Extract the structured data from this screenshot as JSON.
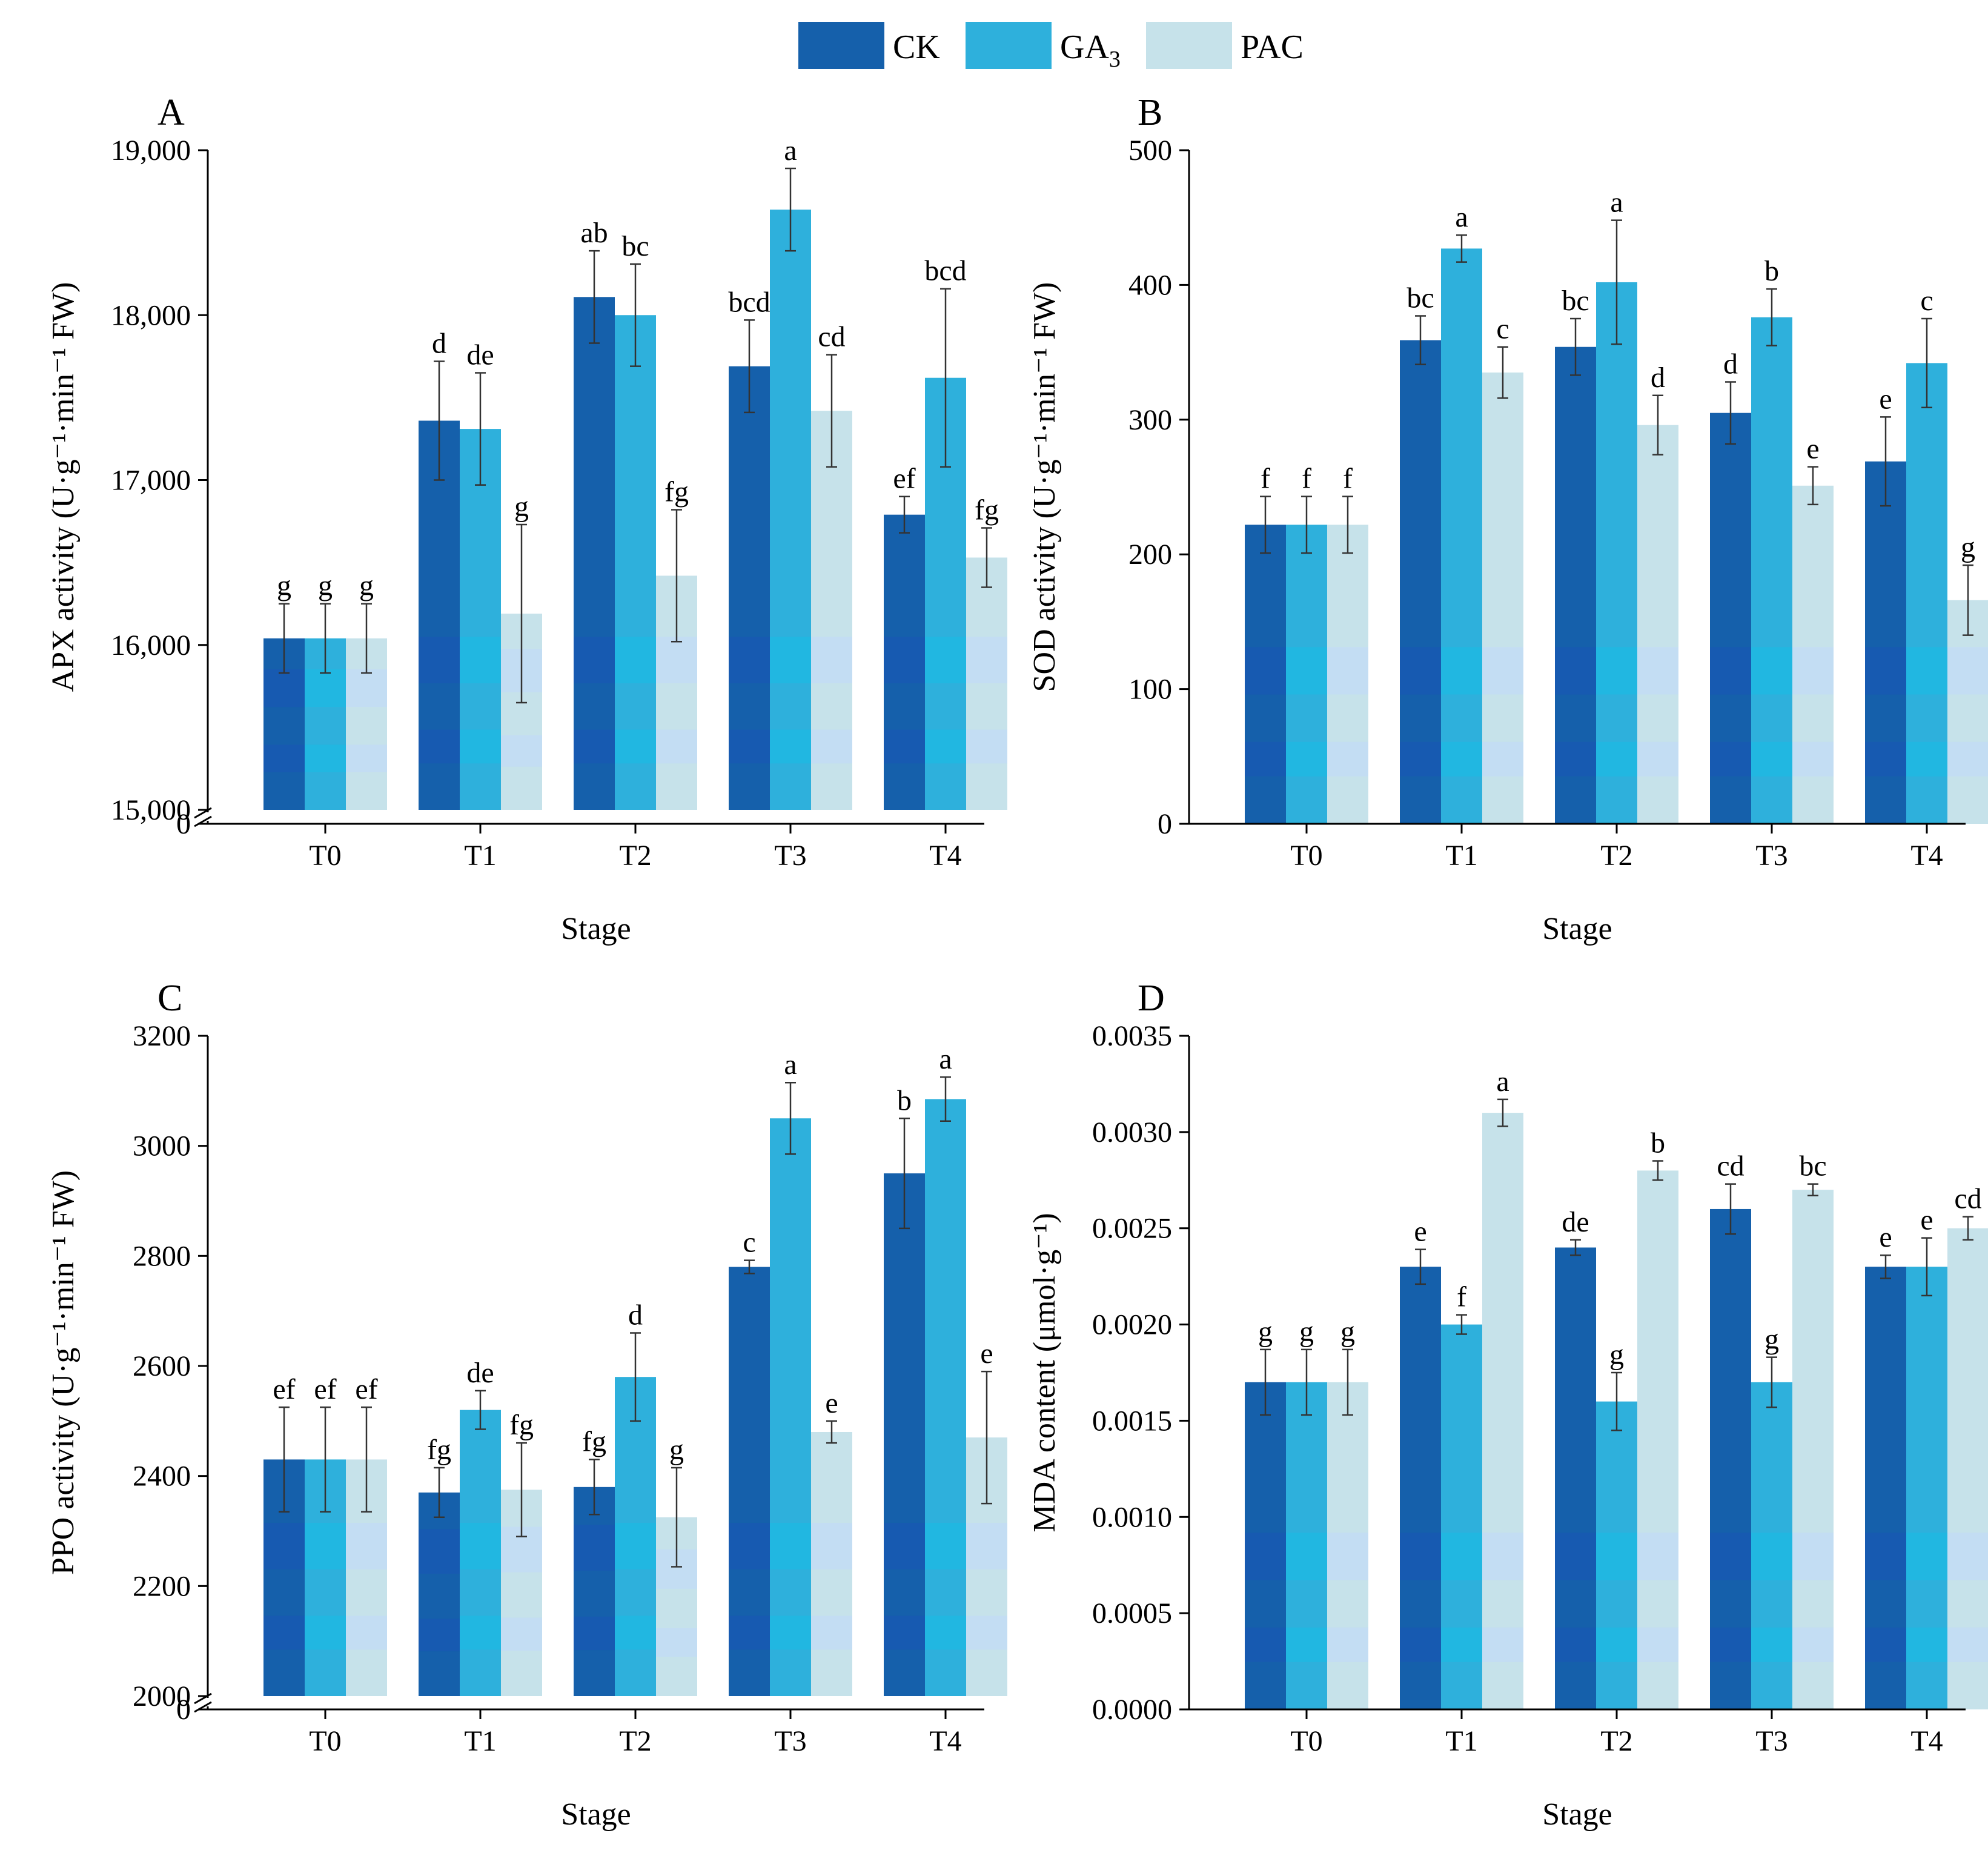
{
  "legend": [
    {
      "label": "CK",
      "sub": "",
      "color": "#1560ab"
    },
    {
      "label": "GA",
      "sub": "3",
      "color": "#2eb0dc"
    },
    {
      "label": "PAC",
      "sub": "",
      "color": "#c6e2ea"
    }
  ],
  "chart_data": [
    {
      "panel": "A",
      "type": "bar",
      "categories": [
        "T0",
        "T1",
        "T2",
        "T3",
        "T4"
      ],
      "xlabel": "Stage",
      "ylabel": "APX activity (U·g⁻¹·min⁻¹ FW)",
      "ylim": [
        15000,
        19000
      ],
      "axis_break": true,
      "zero_label": "0",
      "yticks": [
        15000,
        16000,
        17000,
        18000,
        19000
      ],
      "ytick_labels": [
        "15,000",
        "16,000",
        "17,000",
        "18,000",
        "19,000"
      ],
      "series": [
        {
          "name": "CK",
          "values": [
            16040,
            17360,
            18110,
            17690,
            16790
          ],
          "errors": [
            210,
            360,
            280,
            280,
            110
          ],
          "letters": [
            "g",
            "d",
            "ab",
            "bcd",
            "ef"
          ]
        },
        {
          "name": "GA3",
          "values": [
            16040,
            17310,
            18000,
            18640,
            17620
          ],
          "errors": [
            210,
            340,
            310,
            250,
            540
          ],
          "letters": [
            "g",
            "de",
            "bc",
            "a",
            "bcd"
          ]
        },
        {
          "name": "PAC",
          "values": [
            16040,
            16190,
            16420,
            17420,
            16530
          ],
          "errors": [
            210,
            540,
            400,
            340,
            180
          ],
          "letters": [
            "g",
            "g",
            "fg",
            "cd",
            "fg"
          ]
        }
      ]
    },
    {
      "panel": "B",
      "type": "bar",
      "categories": [
        "T0",
        "T1",
        "T2",
        "T3",
        "T4"
      ],
      "xlabel": "Stage",
      "ylabel": "SOD activity (U·g⁻¹·min⁻¹ FW)",
      "ylim": [
        0,
        500
      ],
      "axis_break": false,
      "yticks": [
        0,
        100,
        200,
        300,
        400,
        500
      ],
      "ytick_labels": [
        "0",
        "100",
        "200",
        "300",
        "400",
        "500"
      ],
      "series": [
        {
          "name": "CK",
          "values": [
            222,
            359,
            354,
            305,
            269
          ],
          "errors": [
            21,
            18,
            21,
            23,
            33
          ],
          "letters": [
            "f",
            "bc",
            "bc",
            "d",
            "e"
          ]
        },
        {
          "name": "GA3",
          "values": [
            222,
            427,
            402,
            376,
            342
          ],
          "errors": [
            21,
            10,
            46,
            21,
            33
          ],
          "letters": [
            "f",
            "a",
            "a",
            "b",
            "c"
          ]
        },
        {
          "name": "PAC",
          "values": [
            222,
            335,
            296,
            251,
            166
          ],
          "errors": [
            21,
            19,
            22,
            14,
            26
          ],
          "letters": [
            "f",
            "c",
            "d",
            "e",
            "g"
          ]
        }
      ]
    },
    {
      "panel": "C",
      "type": "bar",
      "categories": [
        "T0",
        "T1",
        "T2",
        "T3",
        "T4"
      ],
      "xlabel": "Stage",
      "ylabel": "PPO activity (U·g⁻¹·min⁻¹ FW)",
      "ylim": [
        2000,
        3200
      ],
      "axis_break": true,
      "zero_label": "0",
      "yticks": [
        2000,
        2200,
        2400,
        2600,
        2800,
        3000,
        3200
      ],
      "ytick_labels": [
        "2000",
        "2200",
        "2400",
        "2600",
        "2800",
        "3000",
        "3200"
      ],
      "series": [
        {
          "name": "CK",
          "values": [
            2430,
            2370,
            2380,
            2780,
            2950
          ],
          "errors": [
            95,
            45,
            50,
            12,
            100
          ],
          "letters": [
            "ef",
            "fg",
            "fg",
            "c",
            "b"
          ]
        },
        {
          "name": "GA3",
          "values": [
            2430,
            2520,
            2580,
            3050,
            3085
          ],
          "errors": [
            95,
            35,
            80,
            65,
            40
          ],
          "letters": [
            "ef",
            "de",
            "d",
            "a",
            "a"
          ]
        },
        {
          "name": "PAC",
          "values": [
            2430,
            2375,
            2325,
            2480,
            2470
          ],
          "errors": [
            95,
            85,
            90,
            20,
            120
          ],
          "letters": [
            "ef",
            "fg",
            "g",
            "e",
            "e"
          ]
        }
      ]
    },
    {
      "panel": "D",
      "type": "bar",
      "categories": [
        "T0",
        "T1",
        "T2",
        "T3",
        "T4"
      ],
      "xlabel": "Stage",
      "ylabel": "MDA content (μmol·g⁻¹)",
      "ylim": [
        0,
        0.0035
      ],
      "axis_break": false,
      "yticks": [
        0,
        0.0005,
        0.001,
        0.0015,
        0.002,
        0.0025,
        0.003,
        0.0035
      ],
      "ytick_labels": [
        "0.0000",
        "0.0005",
        "0.0010",
        "0.0015",
        "0.0020",
        "0.0025",
        "0.0030",
        "0.0035"
      ],
      "series": [
        {
          "name": "CK",
          "values": [
            0.0017,
            0.0023,
            0.0024,
            0.0026,
            0.0023
          ],
          "errors": [
            0.00017,
            9e-05,
            4e-05,
            0.00013,
            6e-05
          ],
          "letters": [
            "g",
            "e",
            "de",
            "cd",
            "e"
          ]
        },
        {
          "name": "GA3",
          "values": [
            0.0017,
            0.002,
            0.0016,
            0.0017,
            0.0023
          ],
          "errors": [
            0.00017,
            5e-05,
            0.00015,
            0.00013,
            0.00015
          ],
          "letters": [
            "g",
            "f",
            "g",
            "g",
            "e"
          ]
        },
        {
          "name": "PAC",
          "values": [
            0.0017,
            0.0031,
            0.0028,
            0.0027,
            0.0025
          ],
          "errors": [
            0.00017,
            7e-05,
            5e-05,
            3e-05,
            6e-05
          ],
          "letters": [
            "g",
            "a",
            "b",
            "bc",
            "cd"
          ]
        }
      ]
    }
  ]
}
